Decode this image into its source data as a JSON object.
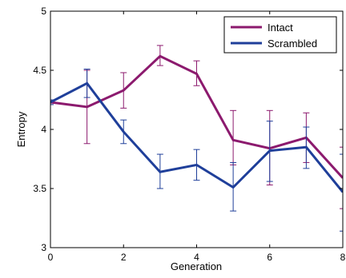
{
  "chart_data": {
    "type": "line",
    "xlabel": "Generation",
    "ylabel": "Entropy",
    "xlim": [
      0,
      8
    ],
    "ylim": [
      3,
      5
    ],
    "xticks": [
      0,
      2,
      4,
      6,
      8
    ],
    "yticks": [
      3,
      3.5,
      4,
      4.5,
      5
    ],
    "ytick_labels": [
      "3",
      "3.5",
      "4",
      "4.5",
      "5"
    ],
    "grid": false,
    "legend_position": "top-right",
    "x": [
      0,
      1,
      2,
      3,
      4,
      5,
      6,
      7,
      8
    ],
    "series": [
      {
        "name": "Intact",
        "color": "#8c1a6e",
        "values": [
          4.23,
          4.19,
          4.33,
          4.62,
          4.47,
          3.91,
          3.84,
          3.93,
          3.59
        ],
        "error_low": [
          4.21,
          3.88,
          4.18,
          4.54,
          4.37,
          3.7,
          3.53,
          3.72,
          3.33
        ],
        "error_high": [
          4.25,
          4.5,
          4.48,
          4.71,
          4.58,
          4.16,
          4.16,
          4.14,
          3.85
        ]
      },
      {
        "name": "Scrambled",
        "color": "#1f3f9a",
        "values": [
          4.23,
          4.39,
          3.98,
          3.64,
          3.7,
          3.51,
          3.82,
          3.85,
          3.47
        ],
        "error_low": [
          4.21,
          4.27,
          3.88,
          3.5,
          3.57,
          3.31,
          3.56,
          3.67,
          3.14
        ],
        "error_high": [
          4.25,
          4.51,
          4.08,
          3.79,
          3.83,
          3.72,
          4.07,
          4.02,
          3.79
        ]
      }
    ]
  }
}
